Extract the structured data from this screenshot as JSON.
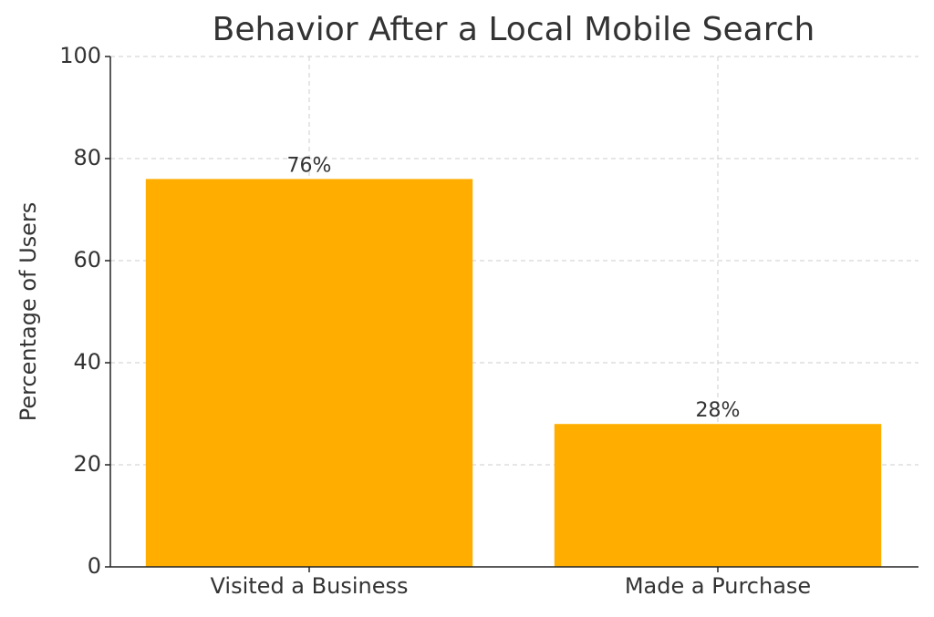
{
  "chart_data": {
    "type": "bar",
    "title": "Behavior After a Local Mobile Search",
    "y_label": "Percentage of Users",
    "categories": [
      "Visited a Business",
      "Made a Purchase"
    ],
    "values": [
      76,
      28
    ],
    "value_labels": [
      "76%",
      "28%"
    ],
    "color": "#ffae00",
    "ylim": [
      0,
      100
    ],
    "yticks": [
      0,
      20,
      40,
      60,
      80,
      100
    ],
    "grid": true
  }
}
